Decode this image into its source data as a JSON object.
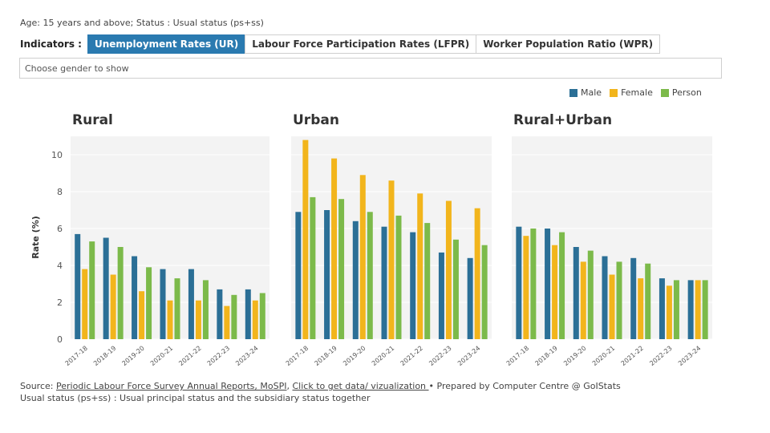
{
  "top_note": "Age: 15 years and above; Status : Usual status (ps+ss)",
  "indicators": {
    "label": "Indicators :",
    "tabs": [
      {
        "label": "Unemployment Rates (UR)",
        "active": true
      },
      {
        "label": "Labour Force Participation Rates (LFPR)",
        "active": false
      },
      {
        "label": "Worker Population Ratio (WPR)",
        "active": false
      }
    ]
  },
  "gender_select": {
    "placeholder": "Choose gender to show"
  },
  "colors": {
    "Male": "#2b6f96",
    "Female": "#f2b51c",
    "Person": "#7cba4a",
    "panel_bg": "#f3f3f3"
  },
  "chart_data": [
    {
      "type": "bar",
      "title": "Rural",
      "categories": [
        "2017-18",
        "2018-19",
        "2019-20",
        "2020-21",
        "2021-22",
        "2022-23",
        "2023-24"
      ],
      "series": [
        {
          "name": "Male",
          "values": [
            5.7,
            5.5,
            4.5,
            3.8,
            3.8,
            2.7,
            2.7
          ]
        },
        {
          "name": "Female",
          "values": [
            3.8,
            3.5,
            2.6,
            2.1,
            2.1,
            1.8,
            2.1
          ]
        },
        {
          "name": "Person",
          "values": [
            5.3,
            5.0,
            3.9,
            3.3,
            3.2,
            2.4,
            2.5
          ]
        }
      ],
      "ylabel": "Rate (%)",
      "ylim": [
        0,
        11
      ],
      "yticks": [
        0,
        2,
        4,
        6,
        8,
        10
      ]
    },
    {
      "type": "bar",
      "title": "Urban",
      "categories": [
        "2017-18",
        "2018-19",
        "2019-20",
        "2020-21",
        "2021-22",
        "2022-23",
        "2023-24"
      ],
      "series": [
        {
          "name": "Male",
          "values": [
            6.9,
            7.0,
            6.4,
            6.1,
            5.8,
            4.7,
            4.4
          ]
        },
        {
          "name": "Female",
          "values": [
            10.8,
            9.8,
            8.9,
            8.6,
            7.9,
            7.5,
            7.1
          ]
        },
        {
          "name": "Person",
          "values": [
            7.7,
            7.6,
            6.9,
            6.7,
            6.3,
            5.4,
            5.1
          ]
        }
      ],
      "ylim": [
        0,
        11
      ]
    },
    {
      "type": "bar",
      "title": "Rural+Urban",
      "categories": [
        "2017-18",
        "2018-19",
        "2019-20",
        "2020-21",
        "2021-22",
        "2022-23",
        "2023-24"
      ],
      "series": [
        {
          "name": "Male",
          "values": [
            6.1,
            6.0,
            5.0,
            4.5,
            4.4,
            3.3,
            3.2
          ]
        },
        {
          "name": "Female",
          "values": [
            5.6,
            5.1,
            4.2,
            3.5,
            3.3,
            2.9,
            3.2
          ]
        },
        {
          "name": "Person",
          "values": [
            6.0,
            5.8,
            4.8,
            4.2,
            4.1,
            3.2,
            3.2
          ]
        }
      ],
      "ylim": [
        0,
        11
      ]
    }
  ],
  "legend": [
    "Male",
    "Female",
    "Person"
  ],
  "footer": {
    "source_prefix": "Source: ",
    "source_link": "Periodic Labour Force Survey Annual Reports, MoSPI",
    "separator": ", ",
    "data_link": "Click to get data/ vizualization ",
    "prepared": "• Prepared by Computer Centre @ GoIStats",
    "note": "Usual status (ps+ss) : Usual principal status and the subsidiary status together"
  }
}
